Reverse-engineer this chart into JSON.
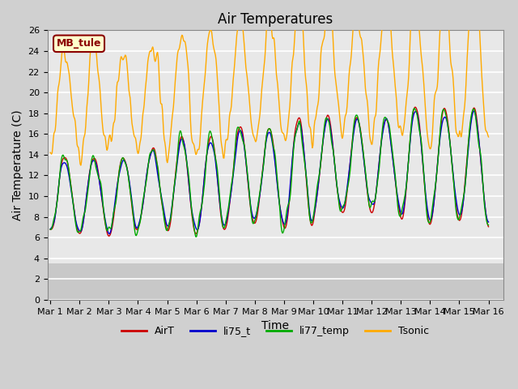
{
  "title": "Air Temperatures",
  "xlabel": "Time",
  "ylabel": "Air Temperature (C)",
  "ylim": [
    0,
    26
  ],
  "site_label": "MB_tule",
  "legend_entries": [
    "AirT",
    "li75_t",
    "li77_temp",
    "Tsonic"
  ],
  "line_colors": [
    "#cc0000",
    "#0000cc",
    "#00aa00",
    "#ffaa00"
  ],
  "fig_bg_color": "#d0d0d0",
  "plot_bg_color": "#e8e8e8",
  "lower_band_color": "#c8c8c8",
  "title_fontsize": 12,
  "label_fontsize": 10,
  "tick_fontsize": 8
}
